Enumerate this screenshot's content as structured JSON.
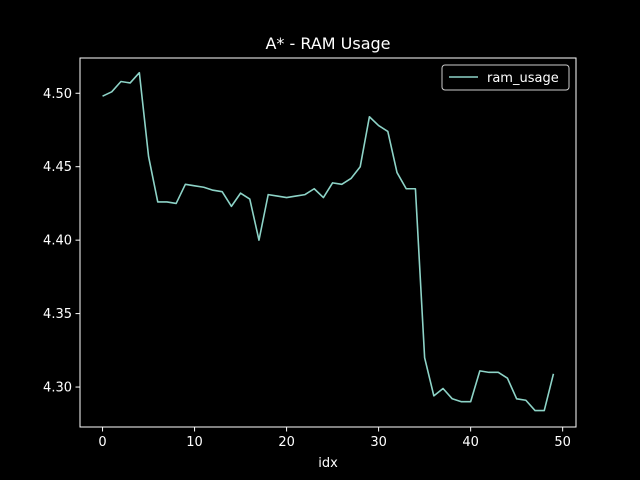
{
  "colors": {
    "background": "#000000",
    "foreground": "#ffffff",
    "line": "#8dd3c7"
  },
  "chart_data": {
    "type": "line",
    "title": "A* - RAM Usage",
    "xlabel": "idx",
    "ylabel": "",
    "xlim": [
      -2.45,
      51.45
    ],
    "ylim": [
      4.2728,
      4.524
    ],
    "xticks": [
      0,
      10,
      20,
      30,
      40,
      50
    ],
    "xtick_labels": [
      "0",
      "10",
      "20",
      "30",
      "40",
      "50"
    ],
    "yticks": [
      4.3,
      4.35,
      4.4,
      4.45,
      4.5
    ],
    "ytick_labels": [
      "4.30",
      "4.35",
      "4.40",
      "4.45",
      "4.50"
    ],
    "grid": false,
    "legend_position": "top-right",
    "series": [
      {
        "name": "ram_usage",
        "x": [
          0,
          1,
          2,
          3,
          4,
          5,
          6,
          7,
          8,
          9,
          10,
          11,
          12,
          13,
          14,
          15,
          16,
          17,
          18,
          19,
          20,
          21,
          22,
          23,
          24,
          25,
          26,
          27,
          28,
          29,
          30,
          31,
          32,
          33,
          34,
          35,
          36,
          37,
          38,
          39,
          40,
          41,
          42,
          43,
          44,
          45,
          46,
          47,
          48,
          49
        ],
        "values": [
          4.498,
          4.501,
          4.508,
          4.507,
          4.514,
          4.457,
          4.426,
          4.426,
          4.425,
          4.438,
          4.437,
          4.436,
          4.434,
          4.433,
          4.423,
          4.432,
          4.428,
          4.4,
          4.431,
          4.43,
          4.429,
          4.43,
          4.431,
          4.435,
          4.429,
          4.439,
          4.438,
          4.442,
          4.45,
          4.484,
          4.478,
          4.474,
          4.446,
          4.435,
          4.435,
          4.32,
          4.294,
          4.299,
          4.292,
          4.29,
          4.29,
          4.311,
          4.31,
          4.31,
          4.306,
          4.292,
          4.291,
          4.284,
          4.284,
          4.309
        ]
      }
    ]
  }
}
